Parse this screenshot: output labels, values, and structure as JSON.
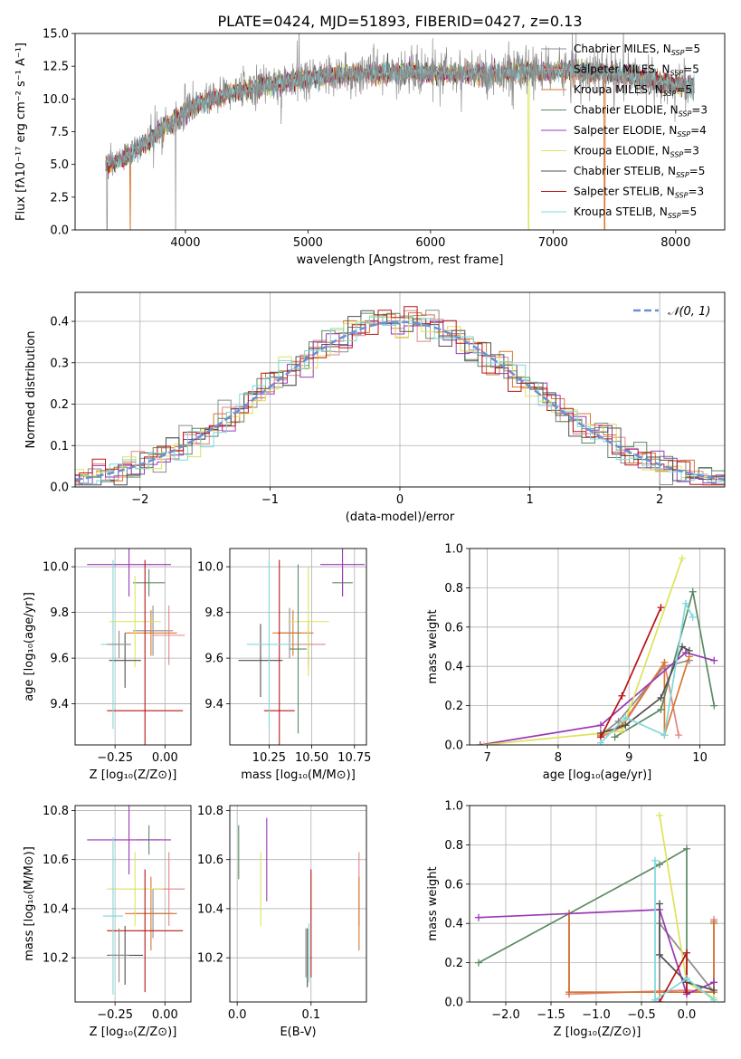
{
  "figure": {
    "title": "PLATE=0424, MJD=51893, FIBERID=0427, z=0.13"
  },
  "colors": {
    "palette": [
      "#8c8c8c",
      "#e08585",
      "#d9762f",
      "#5b8a63",
      "#9b38b5",
      "#dde35a",
      "#505050",
      "#b81515",
      "#7fd8dc"
    ],
    "gauss": "#6a8fd6"
  },
  "chart_data": [
    {
      "id": "spectrum",
      "type": "line",
      "xlabel": "wavelength [Angstrom, rest frame]",
      "ylabel": "Flux [fλ10⁻¹⁷ erg cm⁻² s⁻¹ A⁻¹]",
      "xlim": [
        3100,
        8400
      ],
      "ylim": [
        0,
        15
      ],
      "xticks": [
        4000,
        5000,
        6000,
        7000,
        8000
      ],
      "yticks": [
        0.0,
        2.5,
        5.0,
        7.5,
        10.0,
        12.5,
        15.0
      ],
      "grid": false,
      "legend_position": "right",
      "legend": [
        {
          "name": "Chabrier MILES, N",
          "sub": "SSP",
          "suffix": "=5"
        },
        {
          "name": "Salpeter MILES, N",
          "sub": "SSP",
          "suffix": "=5"
        },
        {
          "name": "Kroupa MILES, N",
          "sub": "SSP",
          "suffix": "=5"
        },
        {
          "name": "Chabrier ELODIE, N",
          "sub": "SSP",
          "suffix": "=3"
        },
        {
          "name": "Salpeter ELODIE, N",
          "sub": "SSP",
          "suffix": "=4"
        },
        {
          "name": "Kroupa ELODIE, N",
          "sub": "SSP",
          "suffix": "=3"
        },
        {
          "name": "Chabrier STELIB, N",
          "sub": "SSP",
          "suffix": "=5"
        },
        {
          "name": "Salpeter STELIB, N",
          "sub": "SSP",
          "suffix": "=3"
        },
        {
          "name": "Kroupa STELIB, N",
          "sub": "SSP",
          "suffix": "=5"
        }
      ],
      "continuum": {
        "x": [
          3350,
          3500,
          3700,
          3900,
          4100,
          4400,
          4700,
          5000,
          5300,
          5600,
          6000,
          6400,
          6800,
          7200,
          7600,
          8000,
          8150
        ],
        "y": [
          5.0,
          5.5,
          6.8,
          8.3,
          9.6,
          10.6,
          11.1,
          11.6,
          11.9,
          12.0,
          12.0,
          11.9,
          12.1,
          12.2,
          11.8,
          11.1,
          11.0
        ]
      },
      "drops": [
        {
          "series": 0,
          "x": 3360
        },
        {
          "series": 0,
          "x": 3920
        },
        {
          "series": 2,
          "x": 3550
        },
        {
          "series": 5,
          "x": 6800
        },
        {
          "series": 2,
          "x": 7420
        }
      ]
    },
    {
      "id": "residuals",
      "type": "step",
      "xlabel": "(data-model)/error",
      "ylabel": "Normed distribution",
      "xlim": [
        -2.5,
        2.5
      ],
      "ylim": [
        0,
        0.47
      ],
      "xticks": [
        -2,
        -1,
        0,
        1,
        2
      ],
      "xtick_labels": [
        "−2",
        "−1",
        "0",
        "1",
        "2"
      ],
      "yticks": [
        0.0,
        0.1,
        0.2,
        0.3,
        0.4
      ],
      "grid": true,
      "legend_position": "top-right",
      "gaussian_label": "𝒩(0, 1)"
    },
    {
      "id": "age-vs-Z",
      "type": "errorbar",
      "xlabel": "Z [log₁₀(Z/Z⊙)]",
      "ylabel": "age  [log₁₀(age/yr)]",
      "xlim": [
        -0.45,
        0.13
      ],
      "ylim": [
        9.22,
        10.08
      ],
      "xticks": [
        -0.25,
        0.0
      ],
      "xtick_labels": [
        "−0.25",
        "0.00"
      ],
      "yticks": [
        9.4,
        9.6,
        9.8,
        10.0
      ],
      "grid": true,
      "points": [
        {
          "c": 0,
          "x": -0.06,
          "y": 9.72,
          "xerr": 0.1,
          "yerr": 0.11
        },
        {
          "c": 1,
          "x": 0.02,
          "y": 9.7,
          "xerr": 0.08,
          "yerr": 0.13
        },
        {
          "c": 2,
          "x": -0.07,
          "y": 9.71,
          "xerr": 0.13,
          "yerr": 0.1
        },
        {
          "c": 3,
          "x": -0.08,
          "y": 9.93,
          "xerr": 0.08,
          "yerr": 0.06
        },
        {
          "c": 4,
          "x": -0.18,
          "y": 10.01,
          "xerr": 0.21,
          "yerr": 0.14
        },
        {
          "c": 5,
          "x": -0.15,
          "y": 9.76,
          "xerr": 0.13,
          "yerr": 0.2
        },
        {
          "c": 6,
          "x": -0.2,
          "y": 9.59,
          "xerr": 0.08,
          "yerr": 0.12
        },
        {
          "c": 7,
          "x": -0.1,
          "y": 9.37,
          "xerr": 0.19,
          "yerr": 0.66
        },
        {
          "c": 8,
          "x": -0.26,
          "y": 9.66,
          "xerr": 0.06,
          "yerr": 0.37
        },
        {
          "c": 0,
          "x": -0.23,
          "y": 9.66,
          "xerr": 0.06,
          "yerr": 0.06
        }
      ]
    },
    {
      "id": "age-vs-mass",
      "type": "errorbar",
      "xlabel": "mass [log₁₀(M/M⊙)]",
      "ylabel": "",
      "xlim": [
        10.02,
        10.82
      ],
      "ylim": [
        9.22,
        10.08
      ],
      "xticks": [
        10.25,
        10.5,
        10.75
      ],
      "xtick_labels": [
        "10.25",
        "10.50",
        "10.75"
      ],
      "yticks": [
        9.4,
        9.6,
        9.8,
        10.0
      ],
      "grid": true,
      "points": [
        {
          "c": 0,
          "x": 10.37,
          "y": 9.71,
          "xerr": 0.07,
          "yerr": 0.11
        },
        {
          "c": 1,
          "x": 10.48,
          "y": 9.66,
          "xerr": 0.1,
          "yerr": 0.1
        },
        {
          "c": 2,
          "x": 10.39,
          "y": 9.71,
          "xerr": 0.12,
          "yerr": 0.1
        },
        {
          "c": 3,
          "x": 10.68,
          "y": 9.93,
          "xerr": 0.06,
          "yerr": 0.06
        },
        {
          "c": 4,
          "x": 10.68,
          "y": 10.01,
          "xerr": 0.13,
          "yerr": 0.14
        },
        {
          "c": 5,
          "x": 10.48,
          "y": 9.76,
          "xerr": 0.12,
          "yerr": 0.24
        },
        {
          "c": 6,
          "x": 10.2,
          "y": 9.59,
          "xerr": 0.13,
          "yerr": 0.16
        },
        {
          "c": 7,
          "x": 10.31,
          "y": 9.37,
          "xerr": 0.09,
          "yerr": 0.66
        },
        {
          "c": 8,
          "x": 10.25,
          "y": 9.66,
          "xerr": 0.13,
          "yerr": 0.37
        },
        {
          "c": 3,
          "x": 10.42,
          "y": 9.64,
          "xerr": 0.05,
          "yerr": 0.37
        }
      ]
    },
    {
      "id": "weight-vs-age",
      "type": "line",
      "xlabel": "age  [log₁₀(age/yr)]",
      "ylabel": "mass weight",
      "xlim": [
        6.75,
        10.35
      ],
      "ylim": [
        0,
        1.0
      ],
      "xticks": [
        7,
        8,
        9,
        10
      ],
      "yticks": [
        0.0,
        0.2,
        0.4,
        0.6,
        0.8,
        1.0
      ],
      "grid": true,
      "series": [
        {
          "c": 0,
          "x": [
            8.6,
            8.85,
            9.5,
            9.85
          ],
          "y": [
            0.05,
            0.12,
            0.4,
            0.43
          ]
        },
        {
          "c": 1,
          "x": [
            8.6,
            8.9,
            9.5,
            9.7
          ],
          "y": [
            0.04,
            0.09,
            0.42,
            0.05
          ]
        },
        {
          "c": 2,
          "x": [
            8.6,
            8.9,
            9.5,
            9.5,
            9.85
          ],
          "y": [
            0.05,
            0.1,
            0.42,
            0.05,
            0.45
          ]
        },
        {
          "c": 3,
          "x": [
            8.8,
            9.45,
            9.9,
            10.2
          ],
          "y": [
            0.04,
            0.18,
            0.78,
            0.2
          ]
        },
        {
          "c": 4,
          "x": [
            6.9,
            8.6,
            9.8,
            10.2
          ],
          "y": [
            0.0,
            0.1,
            0.47,
            0.43
          ]
        },
        {
          "c": 5,
          "x": [
            6.95,
            8.9,
            9.75
          ],
          "y": [
            0.0,
            0.07,
            0.95
          ]
        },
        {
          "c": 6,
          "x": [
            8.6,
            8.95,
            9.45,
            9.75,
            9.85
          ],
          "y": [
            0.06,
            0.1,
            0.24,
            0.5,
            0.48
          ]
        },
        {
          "c": 7,
          "x": [
            8.6,
            8.9,
            9.45
          ],
          "y": [
            0.04,
            0.25,
            0.7
          ]
        },
        {
          "c": 8,
          "x": [
            8.6,
            8.95,
            9.5,
            9.8,
            9.9
          ],
          "y": [
            0.01,
            0.14,
            0.05,
            0.72,
            0.65
          ]
        }
      ]
    },
    {
      "id": "mass-vs-Z",
      "type": "errorbar",
      "xlabel": "Z [log₁₀(Z/Z⊙)]",
      "ylabel": "mass [log₁₀(M/M⊙)]",
      "xlim": [
        -0.45,
        0.13
      ],
      "ylim": [
        10.02,
        10.82
      ],
      "xticks": [
        -0.25,
        0.0
      ],
      "xtick_labels": [
        "−0.25",
        "0.00"
      ],
      "yticks": [
        10.2,
        10.4,
        10.6,
        10.8
      ],
      "grid": true,
      "points": [
        {
          "c": 0,
          "x": -0.06,
          "y": 10.38,
          "xerr": 0.1,
          "yerr": 0.1
        },
        {
          "c": 1,
          "x": 0.02,
          "y": 10.48,
          "xerr": 0.08,
          "yerr": 0.15
        },
        {
          "c": 2,
          "x": -0.07,
          "y": 10.38,
          "xerr": 0.13,
          "yerr": 0.15
        },
        {
          "c": 3,
          "x": -0.08,
          "y": 10.68,
          "xerr": 0.06,
          "yerr": 0.06
        },
        {
          "c": 4,
          "x": -0.18,
          "y": 10.68,
          "xerr": 0.21,
          "yerr": 0.14
        },
        {
          "c": 5,
          "x": -0.15,
          "y": 10.48,
          "xerr": 0.14,
          "yerr": 0.15
        },
        {
          "c": 6,
          "x": -0.2,
          "y": 10.21,
          "xerr": 0.09,
          "yerr": 0.12
        },
        {
          "c": 7,
          "x": -0.1,
          "y": 10.31,
          "xerr": 0.19,
          "yerr": 0.25
        },
        {
          "c": 8,
          "x": -0.26,
          "y": 10.37,
          "xerr": 0.05,
          "yerr": 0.32
        },
        {
          "c": 0,
          "x": -0.23,
          "y": 10.21,
          "xerr": 0.05,
          "yerr": 0.11
        }
      ]
    },
    {
      "id": "mass-vs-EBV",
      "type": "errorbar",
      "xlabel": "E(B-V)",
      "ylabel": "",
      "xlim": [
        -0.01,
        0.175
      ],
      "ylim": [
        10.02,
        10.82
      ],
      "xticks": [
        0.0,
        0.1
      ],
      "xtick_labels": [
        "0.0",
        "0.1"
      ],
      "yticks": [
        10.2,
        10.4,
        10.6,
        10.8
      ],
      "grid": true,
      "points": [
        {
          "c": 0,
          "x": 0.093,
          "y": 10.22,
          "xerr": 0,
          "yerr": 0.1
        },
        {
          "c": 1,
          "x": 0.165,
          "y": 10.48,
          "xerr": 0,
          "yerr": 0.15
        },
        {
          "c": 2,
          "x": 0.165,
          "y": 10.38,
          "xerr": 0,
          "yerr": 0.15
        },
        {
          "c": 3,
          "x": 0.002,
          "y": 10.63,
          "xerr": 0,
          "yerr": 0.11
        },
        {
          "c": 4,
          "x": 0.04,
          "y": 10.6,
          "xerr": 0,
          "yerr": 0.17
        },
        {
          "c": 5,
          "x": 0.032,
          "y": 10.48,
          "xerr": 0,
          "yerr": 0.15
        },
        {
          "c": 6,
          "x": 0.095,
          "y": 10.2,
          "xerr": 0,
          "yerr": 0.12
        },
        {
          "c": 7,
          "x": 0.1,
          "y": 10.34,
          "xerr": 0,
          "yerr": 0.22
        },
        {
          "c": 8,
          "x": 0.097,
          "y": 10.22,
          "xerr": 0,
          "yerr": 0.12
        }
      ]
    },
    {
      "id": "weight-vs-Z",
      "type": "line",
      "xlabel": "Z [log₁₀(Z/Z⊙)]",
      "ylabel": "mass weight",
      "xlim": [
        -2.4,
        0.42
      ],
      "ylim": [
        0,
        1.0
      ],
      "xticks": [
        -2.0,
        -1.5,
        -1.0,
        -0.5,
        0.0
      ],
      "xtick_labels": [
        "−2.0",
        "−1.5",
        "−1.0",
        "−0.5",
        "0.0"
      ],
      "yticks": [
        0.0,
        0.2,
        0.4,
        0.6,
        0.8,
        1.0
      ],
      "grid": true,
      "series": [
        {
          "c": 0,
          "x": [
            -1.3,
            -1.3,
            -0.3,
            -0.3,
            0.3,
            0.3
          ],
          "y": [
            0.45,
            0.05,
            0.05,
            0.4,
            0.05,
            0.41
          ]
        },
        {
          "c": 1,
          "x": [
            -1.3,
            -1.3,
            0.0,
            0.3,
            0.3
          ],
          "y": [
            0.45,
            0.04,
            0.06,
            0.05,
            0.42
          ]
        },
        {
          "c": 2,
          "x": [
            -1.3,
            -1.3,
            -0.3,
            0.3,
            0.3
          ],
          "y": [
            0.45,
            0.05,
            0.05,
            0.05,
            0.4
          ]
        },
        {
          "c": 3,
          "x": [
            -2.3,
            -0.3,
            0.0,
            0.0
          ],
          "y": [
            0.2,
            0.7,
            0.78,
            0.05
          ]
        },
        {
          "c": 4,
          "x": [
            -2.3,
            -0.3,
            0.0,
            0.3
          ],
          "y": [
            0.43,
            0.47,
            0.04,
            0.1
          ]
        },
        {
          "c": 5,
          "x": [
            -0.3,
            0.0,
            0.3
          ],
          "y": [
            0.95,
            0.1,
            0.02
          ]
        },
        {
          "c": 6,
          "x": [
            -0.3,
            -0.3,
            0.0,
            0.3
          ],
          "y": [
            0.5,
            0.24,
            0.1,
            0.06
          ]
        },
        {
          "c": 7,
          "x": [
            -0.3,
            0.0,
            0.0
          ],
          "y": [
            0.0,
            0.25,
            0.05
          ]
        },
        {
          "c": 8,
          "x": [
            -0.35,
            -0.35,
            0.0,
            0.3
          ],
          "y": [
            0.72,
            0.01,
            0.12,
            0.01
          ]
        }
      ]
    }
  ]
}
